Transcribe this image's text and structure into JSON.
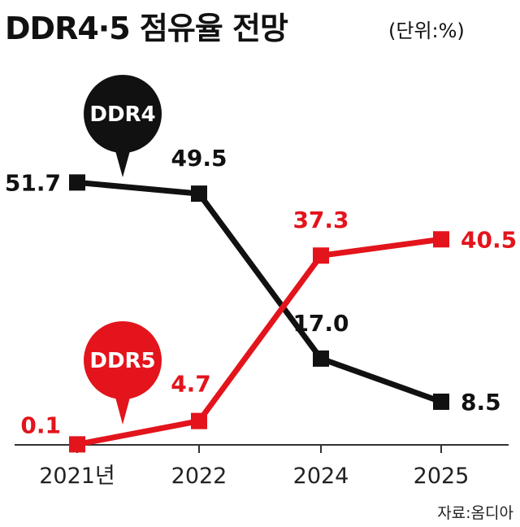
{
  "header": {
    "title": "DDR4·5 점유율 전망",
    "unit": "(단위:%)"
  },
  "source": "자료:옴디아",
  "colors": {
    "ddr4": "#111111",
    "ddr5": "#e3141c",
    "axis": "#333333"
  },
  "chart_data": {
    "type": "line",
    "title": "DDR4·5 점유율 전망",
    "xlabel": "",
    "ylabel": "",
    "unit": "%",
    "categories": [
      "2021년",
      "2022",
      "2024",
      "2025"
    ],
    "ylim": [
      0,
      55
    ],
    "grid": false,
    "series": [
      {
        "name": "DDR4",
        "values": [
          51.7,
          49.5,
          17.0,
          8.5
        ],
        "labels": [
          "51.7",
          "49.5",
          "17.0",
          "8.5"
        ]
      },
      {
        "name": "DDR5",
        "values": [
          0.1,
          4.7,
          37.3,
          40.5
        ],
        "labels": [
          "0.1",
          "4.7",
          "37.3",
          "40.5"
        ]
      }
    ]
  }
}
